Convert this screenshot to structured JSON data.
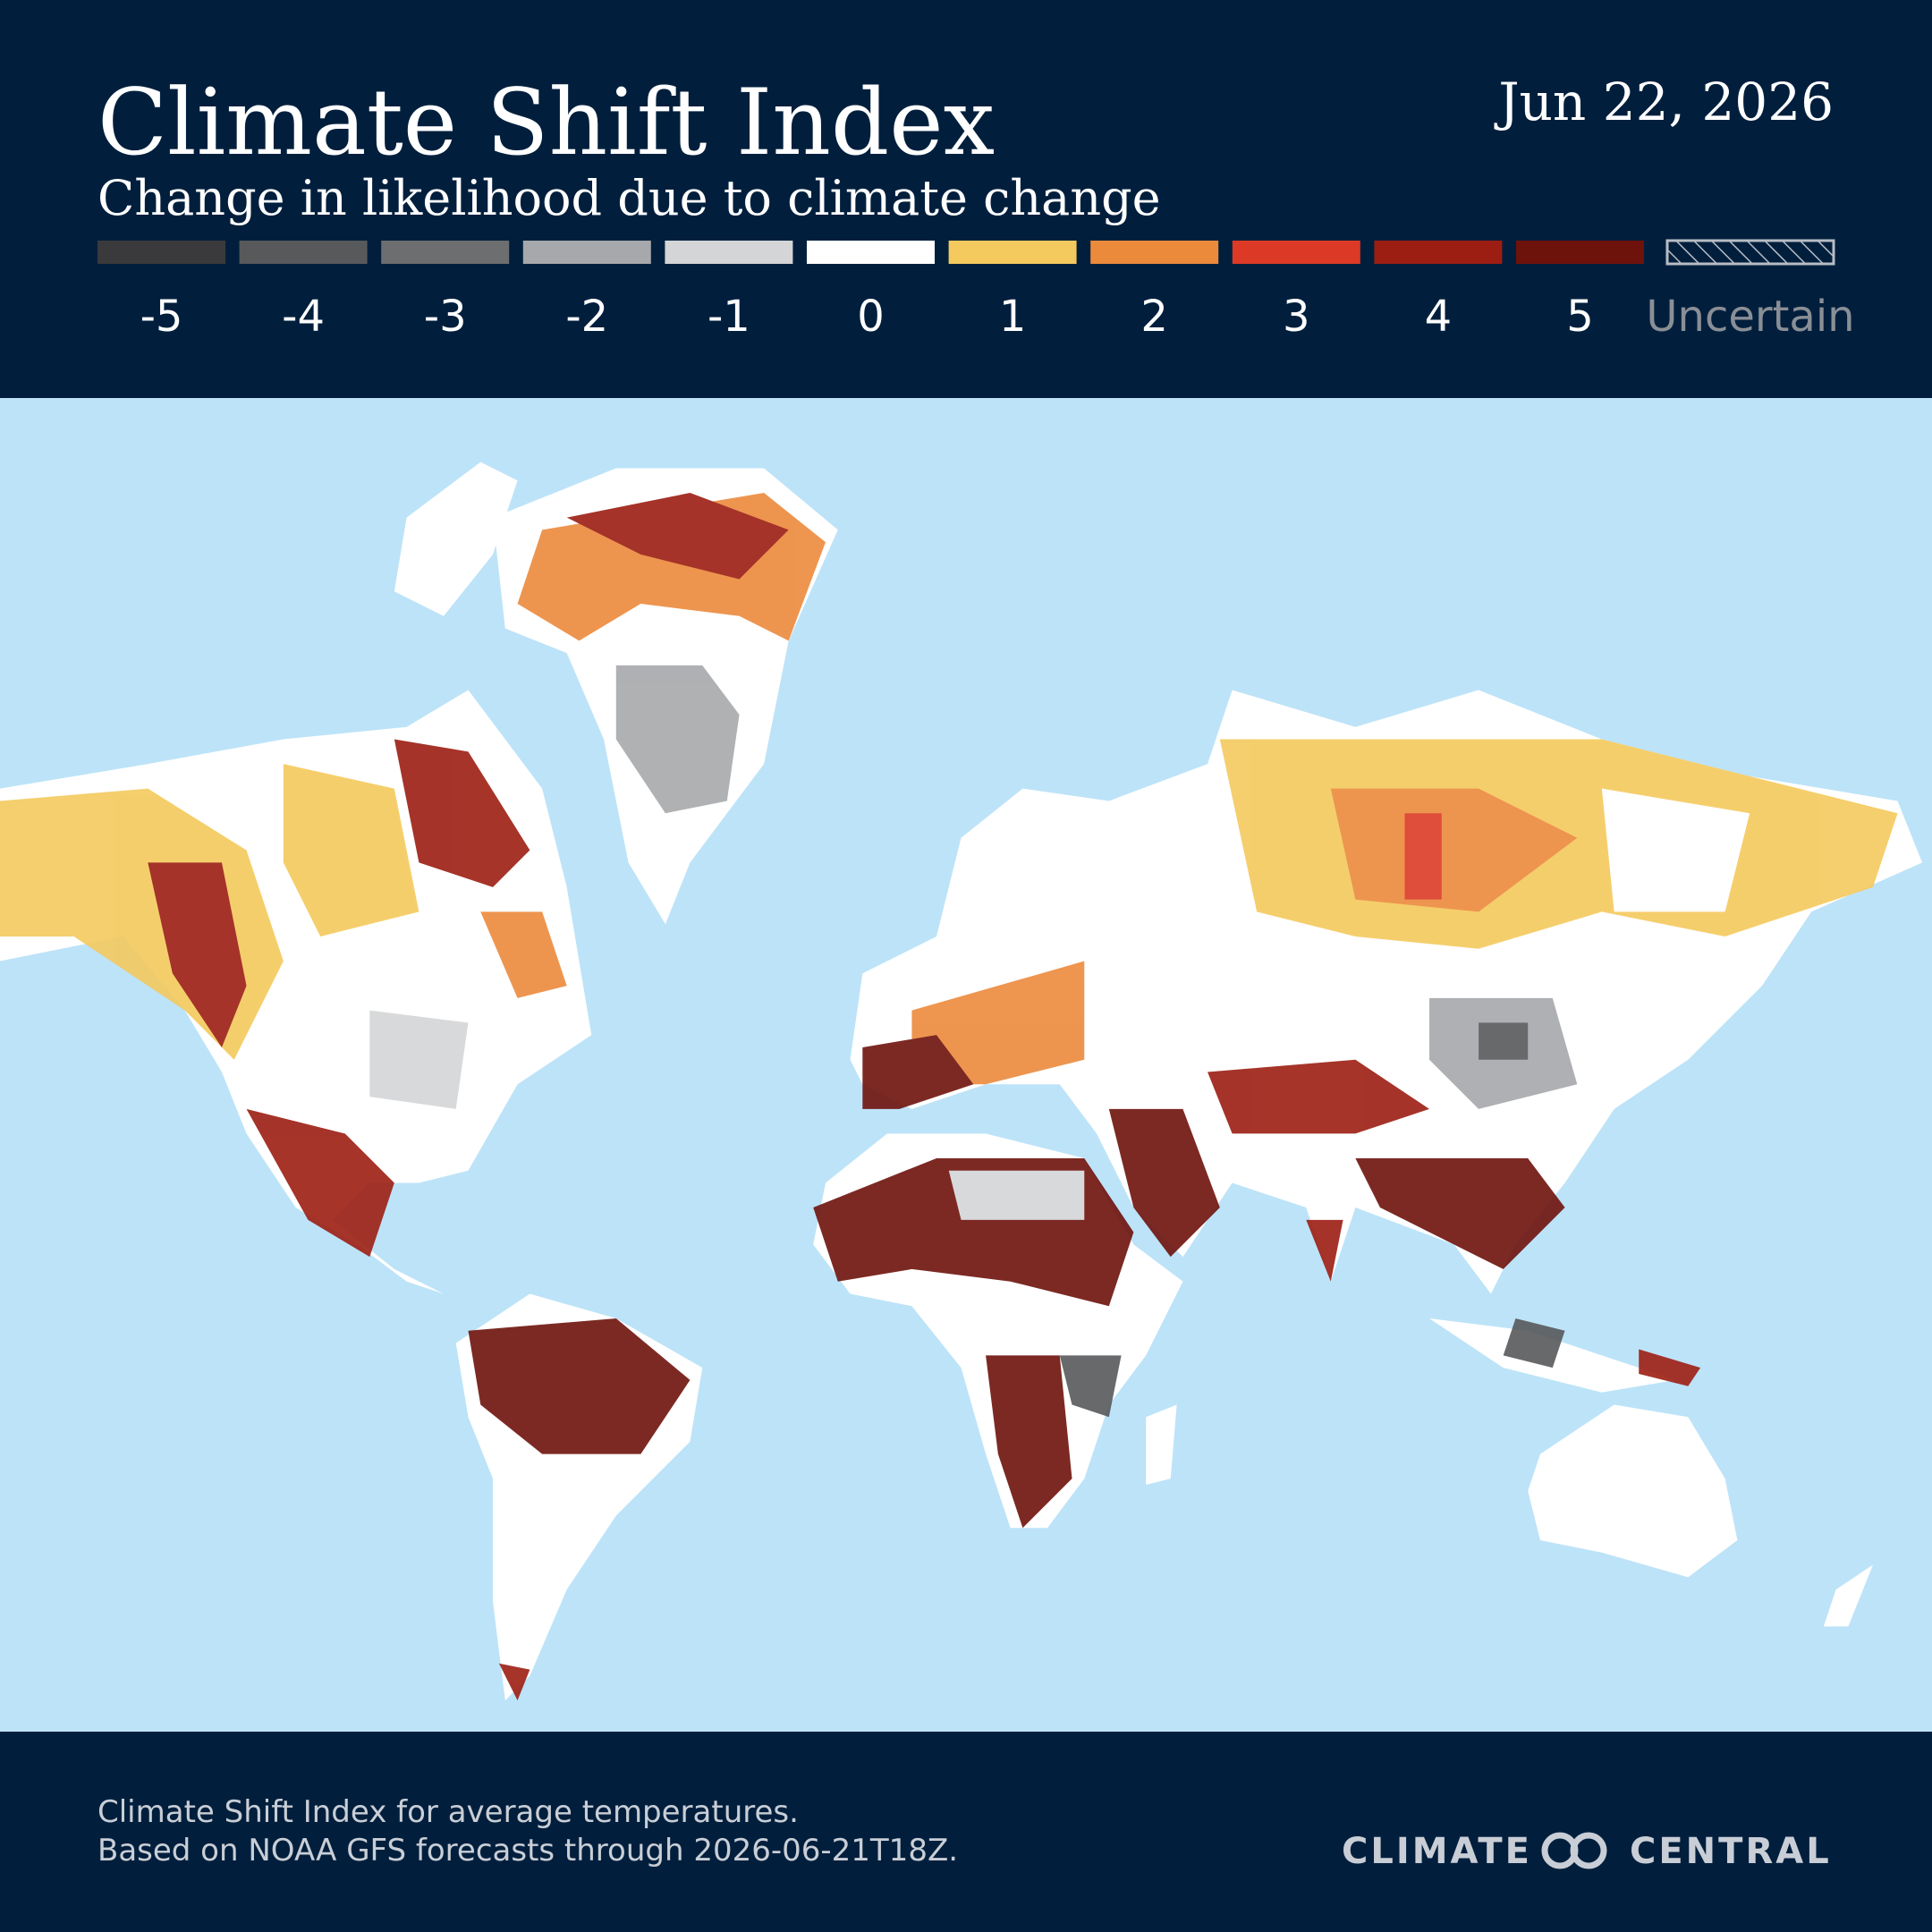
{
  "header": {
    "title": "Climate Shift Index",
    "subtitle": "Change in likelihood due to climate change",
    "date": "Jun 22, 2026"
  },
  "legend": {
    "items": [
      {
        "label": "-5",
        "color": "#3a3a3c"
      },
      {
        "label": "-4",
        "color": "#58595b"
      },
      {
        "label": "-3",
        "color": "#6d6e70"
      },
      {
        "label": "-2",
        "color": "#a6a8ab"
      },
      {
        "label": "-1",
        "color": "#d4d5d7"
      },
      {
        "label": "0",
        "color": "#ffffff"
      },
      {
        "label": "1",
        "color": "#f4c95d"
      },
      {
        "label": "2",
        "color": "#ec8a3c"
      },
      {
        "label": "3",
        "color": "#dc3a26"
      },
      {
        "label": "4",
        "color": "#9c1e12"
      },
      {
        "label": "5",
        "color": "#6e120c"
      }
    ],
    "uncertain": "Uncertain"
  },
  "footer": {
    "lines": [
      "Climate Shift Index for average temperatures.",
      "Based on NOAA GFS forecasts through 2026-06-21T18Z."
    ],
    "logo": [
      "CLIMATE",
      "CENTRAL"
    ]
  }
}
